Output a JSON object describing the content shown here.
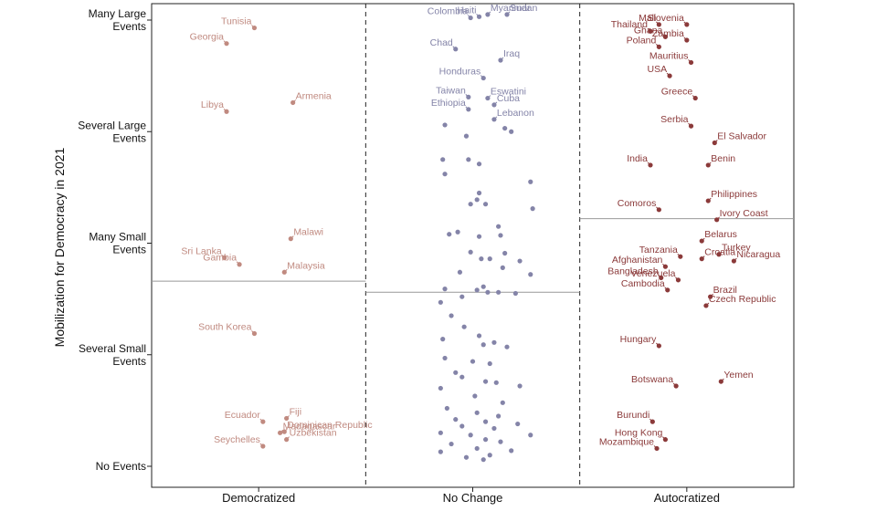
{
  "chart_data": {
    "type": "scatter",
    "title": "",
    "xlabel": "",
    "ylabel": "Mobilization for Democracy in 2021",
    "categories": [
      "Democratized",
      "No Change",
      "Autocratized"
    ],
    "y_ticks": [
      {
        "value": 0,
        "label": "No Events"
      },
      {
        "value": 1,
        "label": "Several Small Events"
      },
      {
        "value": 2,
        "label": "Many Small Events"
      },
      {
        "value": 3,
        "label": "Several Large Events"
      },
      {
        "value": 4,
        "label": "Many Large Events"
      }
    ],
    "ylim": [
      -0.1,
      4.1
    ],
    "grid": false,
    "colors": {
      "Democratized": "#c08a80",
      "No Change": "#8484a8",
      "Autocratized": "#8b3a3a"
    },
    "group_means": [
      {
        "category": "Democratized",
        "y": 1.66
      },
      {
        "category": "No Change",
        "y": 1.56
      },
      {
        "category": "Autocratized",
        "y": 2.22
      }
    ],
    "series": [
      {
        "category": "Democratized",
        "points": [
          {
            "label": "Tunisia",
            "jitter": 0.48,
            "y": 3.93
          },
          {
            "label": "Georgia",
            "jitter": 0.35,
            "y": 3.79
          },
          {
            "label": "Armenia",
            "jitter": 0.66,
            "y": 3.26
          },
          {
            "label": "Libya",
            "jitter": 0.35,
            "y": 3.18
          },
          {
            "label": "Malawi",
            "jitter": 0.65,
            "y": 2.04
          },
          {
            "label": "Sri Lanka",
            "jitter": 0.34,
            "y": 1.87
          },
          {
            "label": "Gambia",
            "jitter": 0.41,
            "y": 1.81
          },
          {
            "label": "Malaysia",
            "jitter": 0.62,
            "y": 1.74
          },
          {
            "label": "South Korea",
            "jitter": 0.48,
            "y": 1.19
          },
          {
            "label": "Fiji",
            "jitter": 0.63,
            "y": 0.43
          },
          {
            "label": "Ecuador",
            "jitter": 0.52,
            "y": 0.4
          },
          {
            "label": "Dominican Republic",
            "jitter": 0.62,
            "y": 0.31
          },
          {
            "label": "Madagascar",
            "jitter": 0.6,
            "y": 0.3
          },
          {
            "label": "Uzbekistan",
            "jitter": 0.63,
            "y": 0.24
          },
          {
            "label": "Seychelles",
            "jitter": 0.52,
            "y": 0.18
          }
        ]
      },
      {
        "category": "No Change",
        "points": [
          {
            "label": "Haiti",
            "jitter": 0.53,
            "y": 4.03
          },
          {
            "label": "Myanmar",
            "jitter": 0.57,
            "y": 4.05
          },
          {
            "label": "Sudan",
            "jitter": 0.66,
            "y": 4.05
          },
          {
            "label": "Colombia",
            "jitter": 0.49,
            "y": 4.02
          },
          {
            "label": "Chad",
            "jitter": 0.42,
            "y": 3.74
          },
          {
            "label": "Iraq",
            "jitter": 0.63,
            "y": 3.64
          },
          {
            "label": "Honduras",
            "jitter": 0.55,
            "y": 3.48
          },
          {
            "label": "Taiwan",
            "jitter": 0.48,
            "y": 3.31
          },
          {
            "label": "Eswatini",
            "jitter": 0.57,
            "y": 3.3
          },
          {
            "label": "Cuba",
            "jitter": 0.6,
            "y": 3.24
          },
          {
            "label": "Ethiopia",
            "jitter": 0.48,
            "y": 3.2
          },
          {
            "label": "Lebanon",
            "jitter": 0.6,
            "y": 3.11
          },
          {
            "label": "",
            "jitter": 0.37,
            "y": 3.06
          },
          {
            "label": "",
            "jitter": 0.68,
            "y": 3.0
          },
          {
            "label": "",
            "jitter": 0.65,
            "y": 3.03
          },
          {
            "label": "",
            "jitter": 0.47,
            "y": 2.96
          },
          {
            "label": "",
            "jitter": 0.48,
            "y": 2.75
          },
          {
            "label": "",
            "jitter": 0.36,
            "y": 2.75
          },
          {
            "label": "",
            "jitter": 0.53,
            "y": 2.71
          },
          {
            "label": "",
            "jitter": 0.37,
            "y": 2.62
          },
          {
            "label": "",
            "jitter": 0.77,
            "y": 2.55
          },
          {
            "label": "",
            "jitter": 0.53,
            "y": 2.45
          },
          {
            "label": "",
            "jitter": 0.52,
            "y": 2.39
          },
          {
            "label": "",
            "jitter": 0.49,
            "y": 2.35
          },
          {
            "label": "",
            "jitter": 0.56,
            "y": 2.35
          },
          {
            "label": "",
            "jitter": 0.78,
            "y": 2.31
          },
          {
            "label": "",
            "jitter": 0.62,
            "y": 2.15
          },
          {
            "label": "",
            "jitter": 0.43,
            "y": 2.1
          },
          {
            "label": "",
            "jitter": 0.39,
            "y": 2.08
          },
          {
            "label": "",
            "jitter": 0.63,
            "y": 2.07
          },
          {
            "label": "",
            "jitter": 0.53,
            "y": 2.06
          },
          {
            "label": "",
            "jitter": 0.49,
            "y": 1.92
          },
          {
            "label": "",
            "jitter": 0.65,
            "y": 1.91
          },
          {
            "label": "",
            "jitter": 0.54,
            "y": 1.86
          },
          {
            "label": "",
            "jitter": 0.58,
            "y": 1.86
          },
          {
            "label": "",
            "jitter": 0.72,
            "y": 1.84
          },
          {
            "label": "",
            "jitter": 0.64,
            "y": 1.78
          },
          {
            "label": "",
            "jitter": 0.44,
            "y": 1.74
          },
          {
            "label": "",
            "jitter": 0.77,
            "y": 1.72
          },
          {
            "label": "",
            "jitter": 0.55,
            "y": 1.61
          },
          {
            "label": "",
            "jitter": 0.37,
            "y": 1.59
          },
          {
            "label": "",
            "jitter": 0.52,
            "y": 1.58
          },
          {
            "label": "",
            "jitter": 0.57,
            "y": 1.56
          },
          {
            "label": "",
            "jitter": 0.62,
            "y": 1.56
          },
          {
            "label": "",
            "jitter": 0.7,
            "y": 1.55
          },
          {
            "label": "",
            "jitter": 0.45,
            "y": 1.52
          },
          {
            "label": "",
            "jitter": 0.35,
            "y": 1.47
          },
          {
            "label": "",
            "jitter": 0.4,
            "y": 1.35
          },
          {
            "label": "",
            "jitter": 0.46,
            "y": 1.25
          },
          {
            "label": "",
            "jitter": 0.36,
            "y": 1.14
          },
          {
            "label": "",
            "jitter": 0.53,
            "y": 1.17
          },
          {
            "label": "",
            "jitter": 0.6,
            "y": 1.11
          },
          {
            "label": "",
            "jitter": 0.55,
            "y": 1.09
          },
          {
            "label": "",
            "jitter": 0.66,
            "y": 1.07
          },
          {
            "label": "",
            "jitter": 0.37,
            "y": 0.97
          },
          {
            "label": "",
            "jitter": 0.5,
            "y": 0.94
          },
          {
            "label": "",
            "jitter": 0.58,
            "y": 0.92
          },
          {
            "label": "",
            "jitter": 0.42,
            "y": 0.84
          },
          {
            "label": "",
            "jitter": 0.45,
            "y": 0.8
          },
          {
            "label": "",
            "jitter": 0.56,
            "y": 0.76
          },
          {
            "label": "",
            "jitter": 0.61,
            "y": 0.75
          },
          {
            "label": "",
            "jitter": 0.72,
            "y": 0.72
          },
          {
            "label": "",
            "jitter": 0.35,
            "y": 0.7
          },
          {
            "label": "",
            "jitter": 0.51,
            "y": 0.63
          },
          {
            "label": "",
            "jitter": 0.64,
            "y": 0.57
          },
          {
            "label": "",
            "jitter": 0.38,
            "y": 0.52
          },
          {
            "label": "",
            "jitter": 0.52,
            "y": 0.48
          },
          {
            "label": "",
            "jitter": 0.62,
            "y": 0.45
          },
          {
            "label": "",
            "jitter": 0.42,
            "y": 0.42
          },
          {
            "label": "",
            "jitter": 0.56,
            "y": 0.4
          },
          {
            "label": "",
            "jitter": 0.71,
            "y": 0.38
          },
          {
            "label": "",
            "jitter": 0.45,
            "y": 0.36
          },
          {
            "label": "",
            "jitter": 0.6,
            "y": 0.34
          },
          {
            "label": "",
            "jitter": 0.35,
            "y": 0.3
          },
          {
            "label": "",
            "jitter": 0.49,
            "y": 0.28
          },
          {
            "label": "",
            "jitter": 0.77,
            "y": 0.28
          },
          {
            "label": "",
            "jitter": 0.56,
            "y": 0.24
          },
          {
            "label": "",
            "jitter": 0.4,
            "y": 0.2
          },
          {
            "label": "",
            "jitter": 0.63,
            "y": 0.22
          },
          {
            "label": "",
            "jitter": 0.52,
            "y": 0.16
          },
          {
            "label": "",
            "jitter": 0.35,
            "y": 0.13
          },
          {
            "label": "",
            "jitter": 0.68,
            "y": 0.14
          },
          {
            "label": "",
            "jitter": 0.58,
            "y": 0.1
          },
          {
            "label": "",
            "jitter": 0.47,
            "y": 0.08
          },
          {
            "label": "",
            "jitter": 0.55,
            "y": 0.06
          }
        ]
      },
      {
        "category": "Autocratized",
        "points": [
          {
            "label": "Mali",
            "jitter": 0.37,
            "y": 3.96
          },
          {
            "label": "Slovenia",
            "jitter": 0.5,
            "y": 3.96
          },
          {
            "label": "Thailand",
            "jitter": 0.33,
            "y": 3.9
          },
          {
            "label": "Ghana",
            "jitter": 0.4,
            "y": 3.85
          },
          {
            "label": "Zambia",
            "jitter": 0.5,
            "y": 3.82
          },
          {
            "label": "Poland",
            "jitter": 0.37,
            "y": 3.76
          },
          {
            "label": "Mauritius",
            "jitter": 0.52,
            "y": 3.62
          },
          {
            "label": "USA",
            "jitter": 0.42,
            "y": 3.5
          },
          {
            "label": "Greece",
            "jitter": 0.54,
            "y": 3.3
          },
          {
            "label": "Serbia",
            "jitter": 0.52,
            "y": 3.05
          },
          {
            "label": "El Salvador",
            "jitter": 0.63,
            "y": 2.9
          },
          {
            "label": "Benin",
            "jitter": 0.6,
            "y": 2.7
          },
          {
            "label": "India",
            "jitter": 0.33,
            "y": 2.7
          },
          {
            "label": "Philippines",
            "jitter": 0.6,
            "y": 2.38
          },
          {
            "label": "Comoros",
            "jitter": 0.37,
            "y": 2.3
          },
          {
            "label": "Ivory Coast",
            "jitter": 0.64,
            "y": 2.21
          },
          {
            "label": "Belarus",
            "jitter": 0.57,
            "y": 2.02
          },
          {
            "label": "Turkey",
            "jitter": 0.65,
            "y": 1.9
          },
          {
            "label": "Tanzania",
            "jitter": 0.47,
            "y": 1.88
          },
          {
            "label": "Croatia",
            "jitter": 0.57,
            "y": 1.86
          },
          {
            "label": "Nicaragua",
            "jitter": 0.72,
            "y": 1.84
          },
          {
            "label": "Afghanistan",
            "jitter": 0.4,
            "y": 1.79
          },
          {
            "label": "Bangladesh",
            "jitter": 0.38,
            "y": 1.69
          },
          {
            "label": "Venezuela",
            "jitter": 0.46,
            "y": 1.67
          },
          {
            "label": "Cambodia",
            "jitter": 0.41,
            "y": 1.58
          },
          {
            "label": "Brazil",
            "jitter": 0.61,
            "y": 1.52
          },
          {
            "label": "Czech Republic",
            "jitter": 0.59,
            "y": 1.44
          },
          {
            "label": "Hungary",
            "jitter": 0.37,
            "y": 1.08
          },
          {
            "label": "Yemen",
            "jitter": 0.66,
            "y": 0.76
          },
          {
            "label": "Botswana",
            "jitter": 0.45,
            "y": 0.72
          },
          {
            "label": "Burundi",
            "jitter": 0.34,
            "y": 0.4
          },
          {
            "label": "Hong Kong",
            "jitter": 0.4,
            "y": 0.24
          },
          {
            "label": "Mozambique",
            "jitter": 0.36,
            "y": 0.16
          }
        ]
      }
    ]
  }
}
